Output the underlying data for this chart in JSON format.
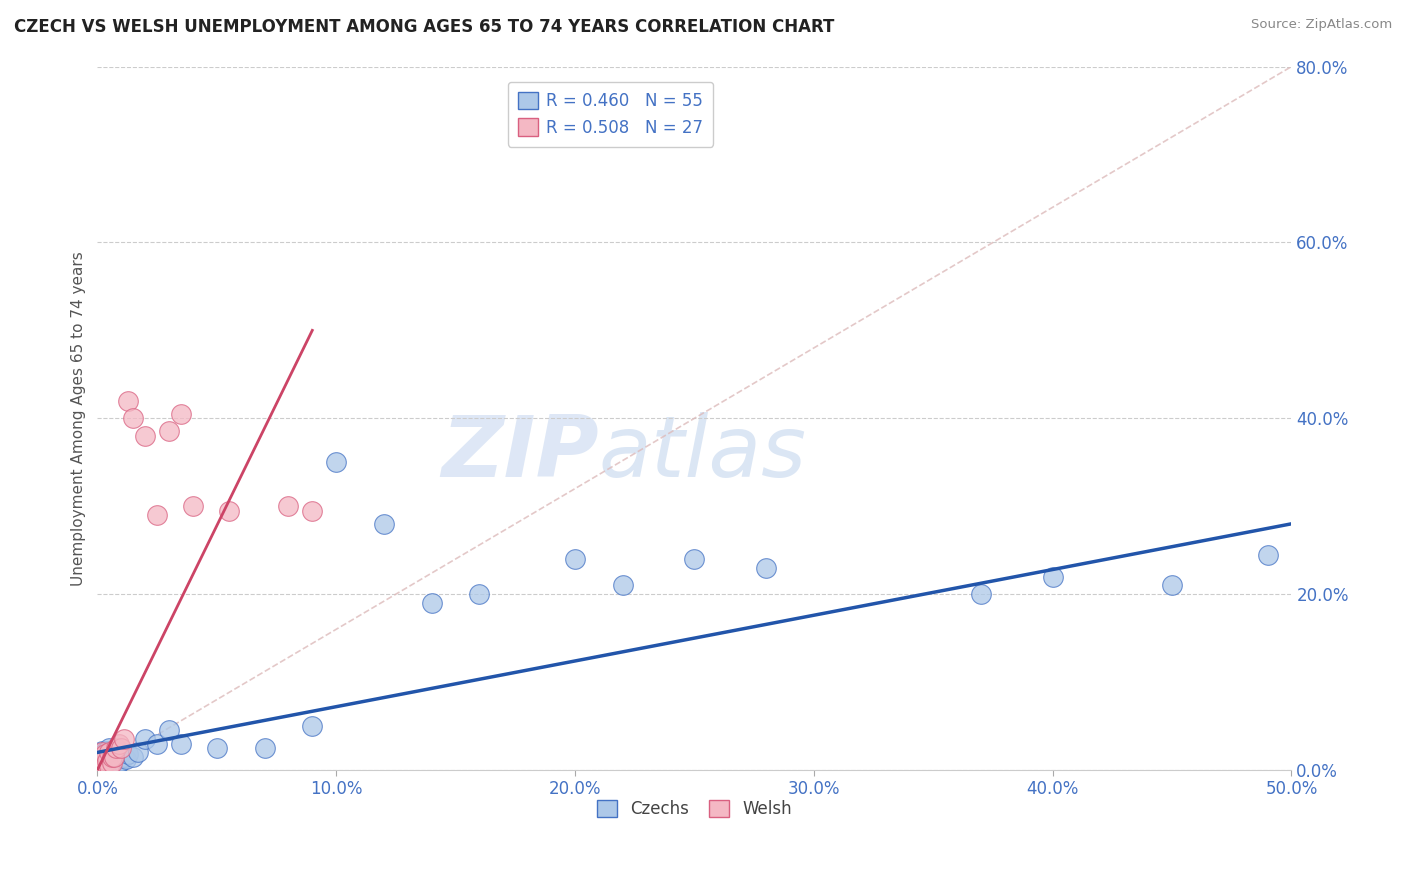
{
  "title": "CZECH VS WELSH UNEMPLOYMENT AMONG AGES 65 TO 74 YEARS CORRELATION CHART",
  "source": "Source: ZipAtlas.com",
  "xlim": [
    0.0,
    0.5
  ],
  "ylim": [
    0.0,
    0.8
  ],
  "legend_r_czech": "R = 0.460",
  "legend_n_czech": "N = 55",
  "legend_r_welsh": "R = 0.508",
  "legend_n_welsh": "N = 27",
  "ylabel": "Unemployment Among Ages 65 to 74 years",
  "czech_color": "#adc8e8",
  "czech_edge_color": "#4472c4",
  "welsh_color": "#f4b8c4",
  "welsh_edge_color": "#d96080",
  "trend_czech_color": "#2255aa",
  "trend_welsh_color": "#cc4466",
  "trend_ref_color": "#ddbbbb",
  "watermark_zip": "ZIP",
  "watermark_atlas": "atlas",
  "czech_scatter_x": [
    0.0005,
    0.001,
    0.001,
    0.001,
    0.002,
    0.002,
    0.002,
    0.002,
    0.002,
    0.003,
    0.003,
    0.003,
    0.003,
    0.004,
    0.004,
    0.004,
    0.005,
    0.005,
    0.005,
    0.005,
    0.006,
    0.006,
    0.007,
    0.007,
    0.008,
    0.008,
    0.008,
    0.009,
    0.009,
    0.01,
    0.01,
    0.011,
    0.012,
    0.013,
    0.015,
    0.017,
    0.02,
    0.025,
    0.03,
    0.035,
    0.05,
    0.07,
    0.09,
    0.1,
    0.12,
    0.14,
    0.16,
    0.2,
    0.22,
    0.25,
    0.28,
    0.37,
    0.4,
    0.45,
    0.49
  ],
  "czech_scatter_y": [
    0.005,
    0.005,
    0.01,
    0.015,
    0.005,
    0.008,
    0.012,
    0.018,
    0.022,
    0.005,
    0.01,
    0.015,
    0.02,
    0.008,
    0.015,
    0.022,
    0.005,
    0.01,
    0.018,
    0.025,
    0.008,
    0.015,
    0.01,
    0.018,
    0.005,
    0.012,
    0.02,
    0.008,
    0.018,
    0.01,
    0.02,
    0.015,
    0.012,
    0.018,
    0.015,
    0.02,
    0.035,
    0.03,
    0.045,
    0.03,
    0.025,
    0.025,
    0.05,
    0.35,
    0.28,
    0.19,
    0.2,
    0.24,
    0.21,
    0.24,
    0.23,
    0.2,
    0.22,
    0.21,
    0.245
  ],
  "welsh_scatter_x": [
    0.0005,
    0.001,
    0.001,
    0.002,
    0.002,
    0.003,
    0.003,
    0.004,
    0.005,
    0.005,
    0.006,
    0.006,
    0.007,
    0.008,
    0.009,
    0.01,
    0.011,
    0.013,
    0.015,
    0.02,
    0.025,
    0.03,
    0.035,
    0.04,
    0.055,
    0.08,
    0.09
  ],
  "welsh_scatter_y": [
    0.005,
    0.008,
    0.015,
    0.01,
    0.02,
    0.008,
    0.018,
    0.01,
    0.005,
    0.02,
    0.008,
    0.015,
    0.015,
    0.025,
    0.03,
    0.025,
    0.035,
    0.42,
    0.4,
    0.38,
    0.29,
    0.385,
    0.405,
    0.3,
    0.295,
    0.3,
    0.295
  ]
}
